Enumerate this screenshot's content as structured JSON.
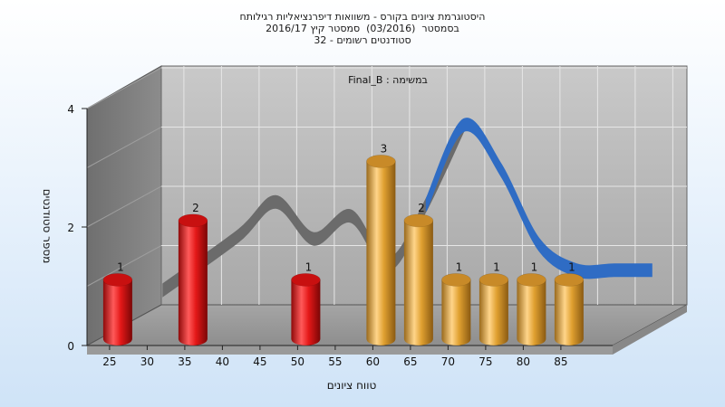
{
  "header": {
    "title_lines": [
      "היסטוגרמת ציונים בקורס - משוואות דיפרנציאליות רגילותח",
      "בסמסטר  (03/2016)  סמסטר קיץ 2016/17",
      "סטודנטים רשומים - 32"
    ]
  },
  "chart_data": {
    "type": "bar",
    "subtitle": "Final_B : במשימה",
    "xlabel": "טווח ציונים",
    "ylabel": "מספר סטודנטים",
    "x_ticks": [
      "25",
      "30",
      "35",
      "40",
      "45",
      "50",
      "55",
      "60",
      "65",
      "70",
      "75",
      "80",
      "85"
    ],
    "y_ticks": [
      "0",
      "2",
      "4"
    ],
    "ylim": [
      0,
      4
    ],
    "grid": true,
    "bars": [
      {
        "x": 25,
        "value": 1,
        "label": "1",
        "color": "#e41818"
      },
      {
        "x": 35,
        "value": 2,
        "label": "2",
        "color": "#e41818"
      },
      {
        "x": 50,
        "value": 1,
        "label": "1",
        "color": "#e41818"
      },
      {
        "x": 60,
        "value": 3,
        "label": "3",
        "color": "#e0a030"
      },
      {
        "x": 65,
        "value": 2,
        "label": "2",
        "color": "#e0a030"
      },
      {
        "x": 70,
        "value": 1,
        "label": "1",
        "color": "#e0a030"
      },
      {
        "x": 75,
        "value": 1,
        "label": "1",
        "color": "#e0a030"
      },
      {
        "x": 80,
        "value": 1,
        "label": "1",
        "color": "#e0a030"
      },
      {
        "x": 85,
        "value": 1,
        "label": "1",
        "color": "#e0a030"
      }
    ],
    "trend": {
      "type": "line",
      "x": [
        25,
        35,
        40,
        45,
        50,
        55,
        60,
        65,
        70,
        75,
        80,
        85,
        90
      ],
      "values": [
        0.7,
        1.65,
        2.25,
        1.6,
        2.0,
        1.15,
        2.2,
        3.6,
        2.8,
        1.5,
        1.05,
        1.05,
        1.05
      ],
      "colors": {
        "before_mean": "#6b6b6b",
        "after_mean": "#2f6cc4"
      },
      "split_x": 62
    }
  }
}
